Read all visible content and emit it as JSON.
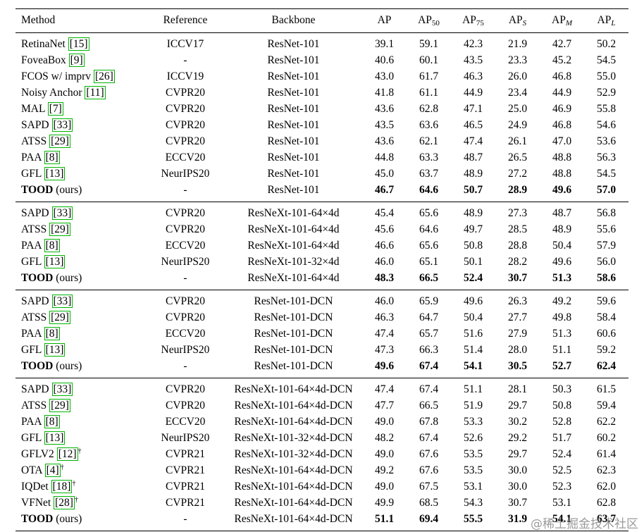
{
  "colors": {
    "citation_box": "#00b400",
    "watermark": "rgba(120,120,120,0.75)"
  },
  "watermark_text": "@稀土掘金技术社区",
  "table": {
    "columns": [
      "Method",
      "Reference",
      "Backbone"
    ],
    "metric_columns": [
      {
        "base": "AP",
        "sub": "",
        "italic": false
      },
      {
        "base": "AP",
        "sub": "50",
        "italic": false
      },
      {
        "base": "AP",
        "sub": "75",
        "italic": false
      },
      {
        "base": "AP",
        "sub": "S",
        "italic": true
      },
      {
        "base": "AP",
        "sub": "M",
        "italic": true
      },
      {
        "base": "AP",
        "sub": "L",
        "italic": true
      }
    ],
    "groups": [
      {
        "rows": [
          {
            "method": "RetinaNet",
            "cite": "[15]",
            "ref": "ICCV17",
            "backbone": "ResNet-101",
            "vals": [
              "39.1",
              "59.1",
              "42.3",
              "21.9",
              "42.7",
              "50.2"
            ]
          },
          {
            "method": "FoveaBox",
            "cite": "[9]",
            "ref": "-",
            "backbone": "ResNet-101",
            "vals": [
              "40.6",
              "60.1",
              "43.5",
              "23.3",
              "45.2",
              "54.5"
            ]
          },
          {
            "method": "FCOS w/ imprv",
            "cite": "[26]",
            "ref": "ICCV19",
            "backbone": "ResNet-101",
            "vals": [
              "43.0",
              "61.7",
              "46.3",
              "26.0",
              "46.8",
              "55.0"
            ]
          },
          {
            "method": "Noisy Anchor",
            "cite": "[11]",
            "ref": "CVPR20",
            "backbone": "ResNet-101",
            "vals": [
              "41.8",
              "61.1",
              "44.9",
              "23.4",
              "44.9",
              "52.9"
            ]
          },
          {
            "method": "MAL",
            "cite": "[7]",
            "ref": "CVPR20",
            "backbone": "ResNet-101",
            "vals": [
              "43.6",
              "62.8",
              "47.1",
              "25.0",
              "46.9",
              "55.8"
            ]
          },
          {
            "method": "SAPD",
            "cite": "[33]",
            "ref": "CVPR20",
            "backbone": "ResNet-101",
            "vals": [
              "43.5",
              "63.6",
              "46.5",
              "24.9",
              "46.8",
              "54.6"
            ]
          },
          {
            "method": "ATSS",
            "cite": "[29]",
            "ref": "CVPR20",
            "backbone": "ResNet-101",
            "vals": [
              "43.6",
              "62.1",
              "47.4",
              "26.1",
              "47.0",
              "53.6"
            ]
          },
          {
            "method": "PAA",
            "cite": "[8]",
            "ref": "ECCV20",
            "backbone": "ResNet-101",
            "vals": [
              "44.8",
              "63.3",
              "48.7",
              "26.5",
              "48.8",
              "56.3"
            ]
          },
          {
            "method": "GFL",
            "cite": "[13]",
            "ref": "NeurIPS20",
            "backbone": "ResNet-101",
            "vals": [
              "45.0",
              "63.7",
              "48.9",
              "27.2",
              "48.8",
              "54.5"
            ]
          },
          {
            "method": "TOOD",
            "suffix": " (ours)",
            "bold": true,
            "ref": "-",
            "backbone": "ResNet-101",
            "vals": [
              "46.7",
              "64.6",
              "50.7",
              "28.9",
              "49.6",
              "57.0"
            ]
          }
        ]
      },
      {
        "rows": [
          {
            "method": "SAPD",
            "cite": "[33]",
            "ref": "CVPR20",
            "backbone": "ResNeXt-101-64×4d",
            "vals": [
              "45.4",
              "65.6",
              "48.9",
              "27.3",
              "48.7",
              "56.8"
            ]
          },
          {
            "method": "ATSS",
            "cite": "[29]",
            "ref": "CVPR20",
            "backbone": "ResNeXt-101-64×4d",
            "vals": [
              "45.6",
              "64.6",
              "49.7",
              "28.5",
              "48.9",
              "55.6"
            ]
          },
          {
            "method": "PAA",
            "cite": "[8]",
            "ref": "ECCV20",
            "backbone": "ResNeXt-101-64×4d",
            "vals": [
              "46.6",
              "65.6",
              "50.8",
              "28.8",
              "50.4",
              "57.9"
            ]
          },
          {
            "method": "GFL",
            "cite": "[13]",
            "ref": "NeurIPS20",
            "backbone": "ResNeXt-101-32×4d",
            "vals": [
              "46.0",
              "65.1",
              "50.1",
              "28.2",
              "49.6",
              "56.0"
            ]
          },
          {
            "method": "TOOD",
            "suffix": " (ours)",
            "bold": true,
            "ref": "-",
            "backbone": "ResNeXt-101-64×4d",
            "vals": [
              "48.3",
              "66.5",
              "52.4",
              "30.7",
              "51.3",
              "58.6"
            ]
          }
        ]
      },
      {
        "rows": [
          {
            "method": "SAPD",
            "cite": "[33]",
            "ref": "CVPR20",
            "backbone": "ResNet-101-DCN",
            "vals": [
              "46.0",
              "65.9",
              "49.6",
              "26.3",
              "49.2",
              "59.6"
            ]
          },
          {
            "method": "ATSS",
            "cite": "[29]",
            "ref": "CVPR20",
            "backbone": "ResNet-101-DCN",
            "vals": [
              "46.3",
              "64.7",
              "50.4",
              "27.7",
              "49.8",
              "58.4"
            ]
          },
          {
            "method": "PAA",
            "cite": "[8]",
            "ref": "ECCV20",
            "backbone": "ResNet-101-DCN",
            "vals": [
              "47.4",
              "65.7",
              "51.6",
              "27.9",
              "51.3",
              "60.6"
            ]
          },
          {
            "method": "GFL",
            "cite": "[13]",
            "ref": "NeurIPS20",
            "backbone": "ResNet-101-DCN",
            "vals": [
              "47.3",
              "66.3",
              "51.4",
              "28.0",
              "51.1",
              "59.2"
            ]
          },
          {
            "method": "TOOD",
            "suffix": " (ours)",
            "bold": true,
            "ref": "-",
            "backbone": "ResNet-101-DCN",
            "vals": [
              "49.6",
              "67.4",
              "54.1",
              "30.5",
              "52.7",
              "62.4"
            ]
          }
        ]
      },
      {
        "rows": [
          {
            "method": "SAPD",
            "cite": "[33]",
            "ref": "CVPR20",
            "backbone": "ResNeXt-101-64×4d-DCN",
            "vals": [
              "47.4",
              "67.4",
              "51.1",
              "28.1",
              "50.3",
              "61.5"
            ]
          },
          {
            "method": "ATSS",
            "cite": "[29]",
            "ref": "CVPR20",
            "backbone": "ResNeXt-101-64×4d-DCN",
            "vals": [
              "47.7",
              "66.5",
              "51.9",
              "29.7",
              "50.8",
              "59.4"
            ]
          },
          {
            "method": "PAA",
            "cite": "[8]",
            "ref": "ECCV20",
            "backbone": "ResNeXt-101-64×4d-DCN",
            "vals": [
              "49.0",
              "67.8",
              "53.3",
              "30.2",
              "52.8",
              "62.2"
            ]
          },
          {
            "method": "GFL",
            "cite": "[13]",
            "ref": "NeurIPS20",
            "backbone": "ResNeXt-101-32×4d-DCN",
            "vals": [
              "48.2",
              "67.4",
              "52.6",
              "29.2",
              "51.7",
              "60.2"
            ]
          },
          {
            "method": "GFLV2",
            "cite": "[12]",
            "dagger": "†",
            "ref": "CVPR21",
            "backbone": "ResNeXt-101-32×4d-DCN",
            "vals": [
              "49.0",
              "67.6",
              "53.5",
              "29.7",
              "52.4",
              "61.4"
            ]
          },
          {
            "method": "OTA",
            "cite": "[4]",
            "dagger": "†",
            "ref": "CVPR21",
            "backbone": "ResNeXt-101-64×4d-DCN",
            "vals": [
              "49.2",
              "67.6",
              "53.5",
              "30.0",
              "52.5",
              "62.3"
            ]
          },
          {
            "method": "IQDet",
            "cite": "[18]",
            "dagger": "†",
            "ref": "CVPR21",
            "backbone": "ResNeXt-101-64×4d-DCN",
            "vals": [
              "49.0",
              "67.5",
              "53.1",
              "30.0",
              "52.3",
              "62.0"
            ]
          },
          {
            "method": "VFNet",
            "cite": "[28]",
            "dagger": "†",
            "ref": "CVPR21",
            "backbone": "ResNeXt-101-64×4d-DCN",
            "vals": [
              "49.9",
              "68.5",
              "54.3",
              "30.7",
              "53.1",
              "62.8"
            ]
          },
          {
            "method": "TOOD",
            "suffix": " (ours)",
            "bold": true,
            "ref": "-",
            "backbone": "ResNeXt-101-64×4d-DCN",
            "vals": [
              "51.1",
              "69.4",
              "55.5",
              "31.9",
              "54.1",
              "63.7"
            ]
          }
        ]
      }
    ]
  }
}
